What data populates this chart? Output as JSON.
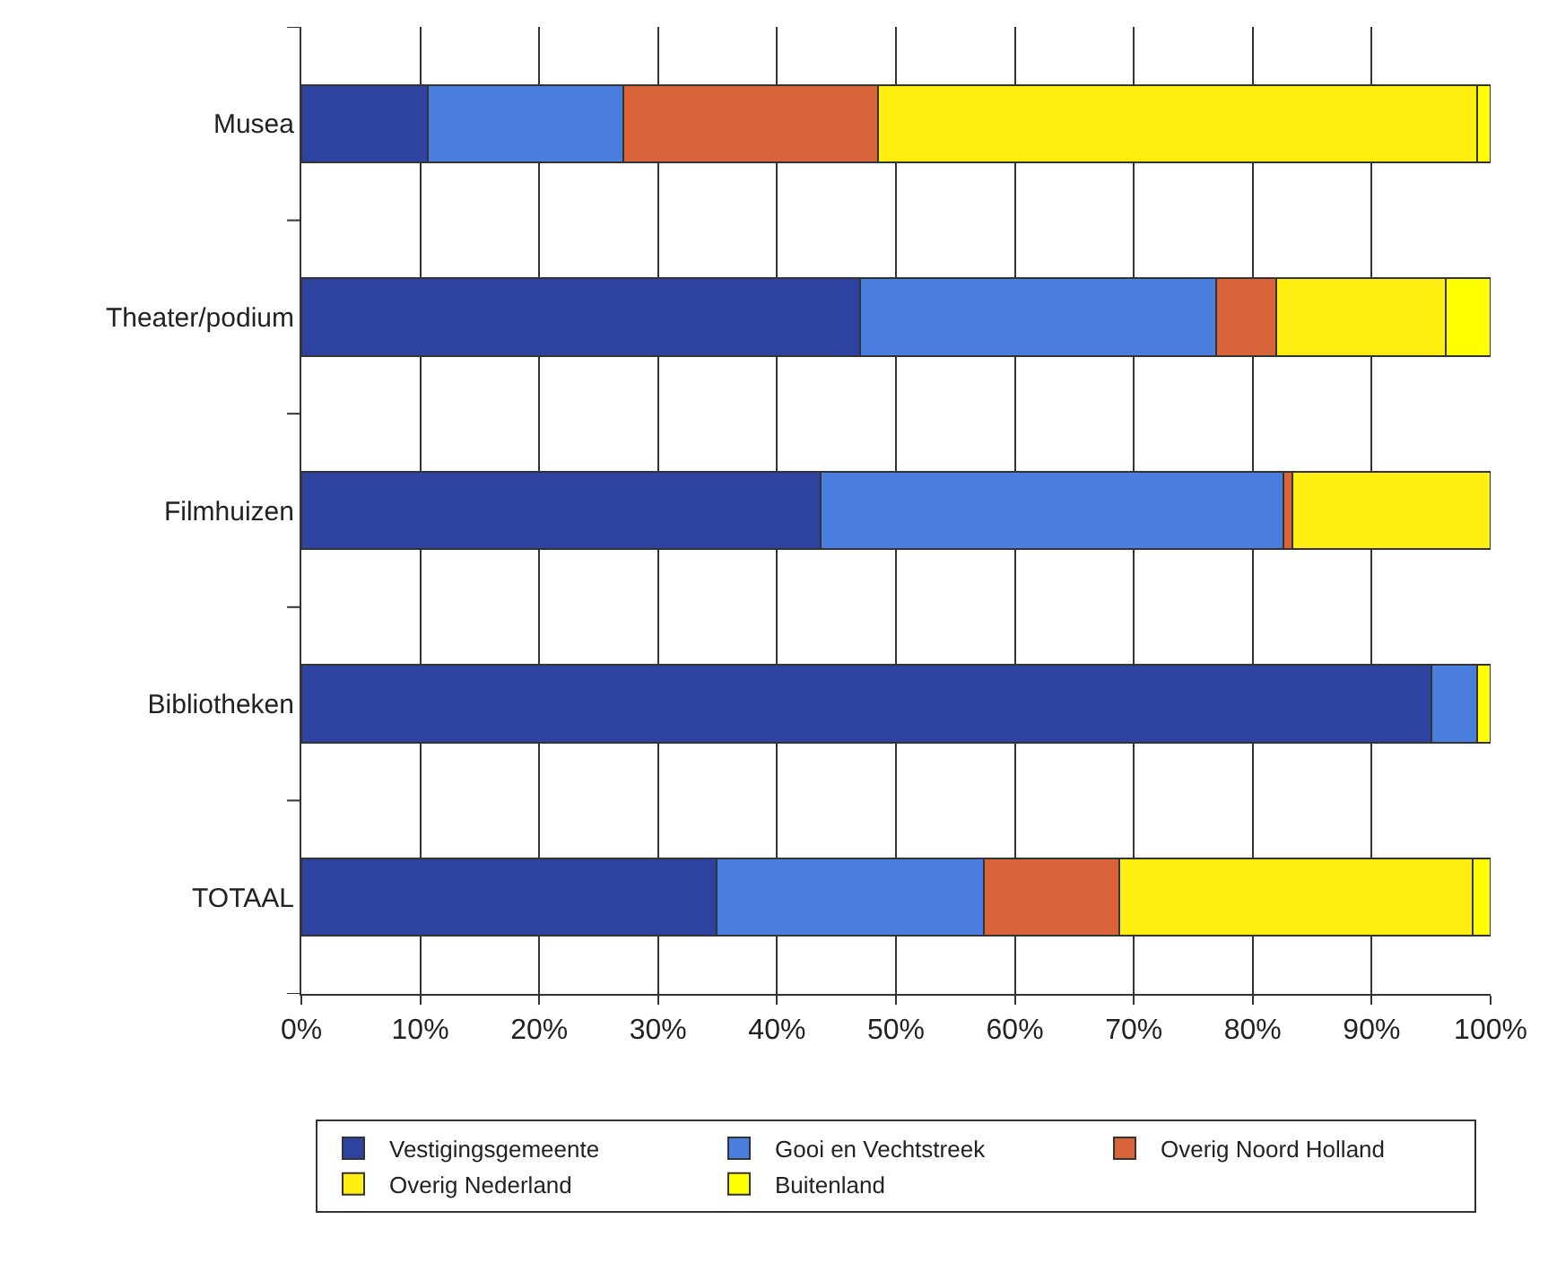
{
  "chart_data": {
    "type": "bar",
    "orientation": "horizontal",
    "stacked": true,
    "categories": [
      "Musea",
      "Theater/podium",
      "Filmhuizen",
      "Bibliotheken",
      "TOTAAL"
    ],
    "series": [
      {
        "name": "Vestigingsgemeente",
        "color": "#2e43a0",
        "values": [
          10.6,
          47.0,
          43.7,
          95.0,
          34.9
        ]
      },
      {
        "name": "Gooi en Vechtstreek",
        "color": "#4a7fe0",
        "values": [
          16.5,
          29.9,
          38.9,
          3.9,
          22.5
        ]
      },
      {
        "name": "Overig Noord Holland",
        "color": "#d9643a",
        "values": [
          21.4,
          5.1,
          0.7,
          null,
          11.4
        ]
      },
      {
        "name": "Overig Nederland",
        "color": "#ffee10",
        "values": [
          50.4,
          14.2,
          16.7,
          null,
          29.7
        ]
      },
      {
        "name": "Buitenland",
        "color": "#ffff00",
        "values": [
          1.1,
          3.8,
          null,
          1.1,
          1.5
        ]
      }
    ],
    "xlim": [
      0,
      100
    ],
    "xticks": [
      {
        "value": 0,
        "label": "0%"
      },
      {
        "value": 10,
        "label": "10%"
      },
      {
        "value": 20,
        "label": "20%"
      },
      {
        "value": 30,
        "label": "30%"
      },
      {
        "value": 40,
        "label": "40%"
      },
      {
        "value": 50,
        "label": "50%"
      },
      {
        "value": 60,
        "label": "60%"
      },
      {
        "value": 70,
        "label": "70%"
      },
      {
        "value": 80,
        "label": "80%"
      },
      {
        "value": 90,
        "label": "90%"
      },
      {
        "value": 100,
        "label": "100%"
      }
    ],
    "grid": "x",
    "legend": "bottom"
  }
}
